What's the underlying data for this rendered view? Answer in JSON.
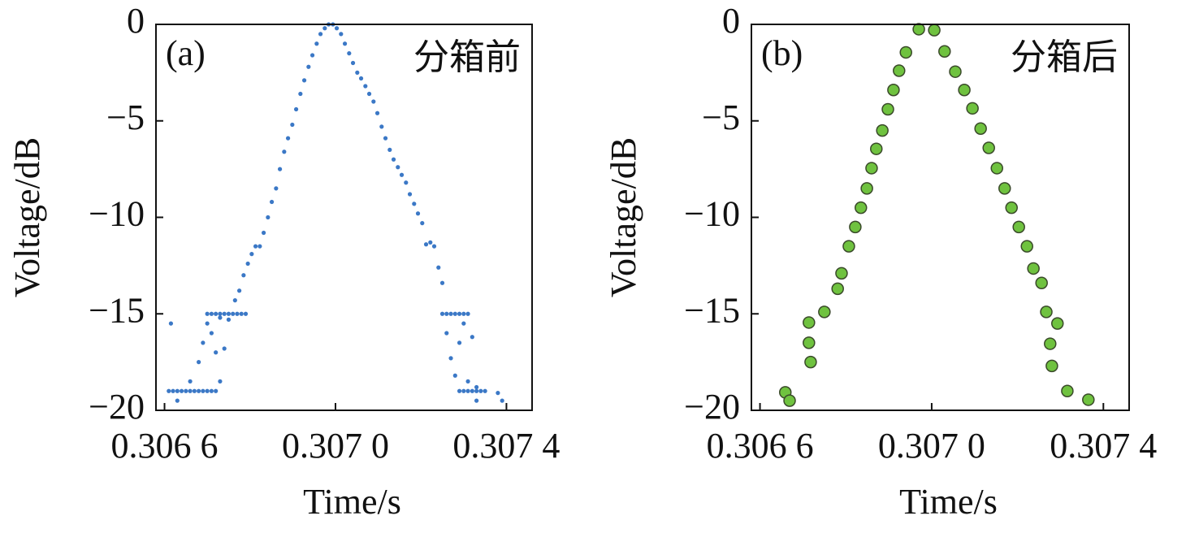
{
  "chart_data": [
    {
      "type": "scatter",
      "panel_label": "(a)",
      "annotation": "分箱前",
      "x_label": "Time/s",
      "y_label": "Voltage/dB",
      "color": "#3b78c6",
      "marker_size": 2.6,
      "xlim": [
        0.30658,
        0.30746
      ],
      "ylim": [
        -20,
        0
      ],
      "xticks": [
        {
          "value": 0.3066,
          "label": "0.306 6"
        },
        {
          "value": 0.307,
          "label": "0.307 0"
        },
        {
          "value": 0.3074,
          "label": "0.307 4"
        }
      ],
      "yticks": [
        {
          "value": -20,
          "label": "−20"
        },
        {
          "value": -15,
          "label": "−15"
        },
        {
          "value": -10,
          "label": "−10"
        },
        {
          "value": -5,
          "label": "−5"
        },
        0
      ],
      "x": [
        0.30661,
        0.30662,
        0.30663,
        0.30664,
        0.30665,
        0.30666,
        0.30667,
        0.30668,
        0.30669,
        0.3067,
        0.30671,
        0.30672,
        0.306615,
        0.30663,
        0.30666,
        0.30668,
        0.30669,
        0.3067,
        0.30671,
        0.30672,
        0.30673,
        0.30673,
        0.30674,
        0.30675,
        0.3067,
        0.30671,
        0.30672,
        0.30673,
        0.30674,
        0.30675,
        0.30676,
        0.30677,
        0.30678,
        0.30679,
        0.306765,
        0.306775,
        0.306785,
        0.306795,
        0.306804,
        0.306813,
        0.306823,
        0.306832,
        0.306842,
        0.306851,
        0.306861,
        0.30687,
        0.30688,
        0.306889,
        0.306899,
        0.306908,
        0.306918,
        0.306927,
        0.306937,
        0.306946,
        0.306956,
        0.306965,
        0.306975,
        0.306984,
        0.306994,
        0.307003,
        0.307013,
        0.307022,
        0.307032,
        0.307041,
        0.307051,
        0.30706,
        0.30707,
        0.307079,
        0.307089,
        0.307098,
        0.307108,
        0.307117,
        0.307127,
        0.307136,
        0.307146,
        0.307155,
        0.307165,
        0.307174,
        0.307184,
        0.307193,
        0.307203,
        0.307212,
        0.307222,
        0.307231,
        0.307241,
        0.30725,
        0.30725,
        0.30726,
        0.30727,
        0.30728,
        0.30729,
        0.3073,
        0.30731,
        0.30726,
        0.30727,
        0.30728,
        0.30729,
        0.3073,
        0.30731,
        0.30732,
        0.30733,
        0.30729,
        0.3073,
        0.30731,
        0.30732,
        0.30733,
        0.30734,
        0.30735,
        0.30739,
        0.30738,
        0.30733
      ],
      "values": [
        -19,
        -19,
        -19,
        -19,
        -19,
        -19,
        -19,
        -19,
        -19,
        -19,
        -19,
        -19,
        -15.5,
        -19.5,
        -18.5,
        -17.5,
        -16.5,
        -15.5,
        -16,
        -17,
        -18.5,
        -15.2,
        -16.8,
        -15.3,
        -15,
        -15,
        -15,
        -15,
        -15,
        -15,
        -15,
        -15,
        -15,
        -15,
        -14.3,
        -13.8,
        -13,
        -12.4,
        -11.9,
        -11.5,
        -11.5,
        -10.8,
        -10,
        -9.2,
        -8.5,
        -7.5,
        -6.6,
        -5.9,
        -5.2,
        -4.4,
        -3.6,
        -2.9,
        -2.2,
        -1.6,
        -1,
        -0.5,
        -0.2,
        0,
        0,
        -0.2,
        -0.5,
        -1,
        -1.5,
        -2,
        -2.5,
        -2.8,
        -3.2,
        -3.6,
        -4,
        -4.6,
        -5.3,
        -5.9,
        -6.5,
        -7,
        -7.4,
        -7.8,
        -8.2,
        -8.8,
        -9.3,
        -9.8,
        -10.3,
        -11.4,
        -11.3,
        -11.5,
        -12.6,
        -13.4,
        -15,
        -15,
        -15,
        -15,
        -15,
        -15,
        -15,
        -16,
        -17.3,
        -18.2,
        -16.5,
        -15.5,
        -18.5,
        -16.2,
        -18.8,
        -19,
        -19,
        -19,
        -19,
        -19,
        -19,
        -19,
        -19.5,
        -19.1,
        -19.5
      ]
    },
    {
      "type": "scatter",
      "panel_label": "(b)",
      "annotation": "分箱后",
      "x_label": "Time/s",
      "y_label": "Voltage/dB",
      "color": "#6fc23f",
      "marker_size": 7,
      "xlim": [
        0.30658,
        0.30746
      ],
      "ylim": [
        -20,
        0
      ],
      "xticks": [
        {
          "value": 0.3066,
          "label": "0.306 6"
        },
        {
          "value": 0.307,
          "label": "0.307 0"
        },
        {
          "value": 0.3074,
          "label": "0.307 4"
        }
      ],
      "yticks": [
        {
          "value": -20,
          "label": "−20"
        },
        {
          "value": -15,
          "label": "−15"
        },
        {
          "value": -10,
          "label": "−10"
        },
        {
          "value": -5,
          "label": "−5"
        },
        0
      ],
      "x": [
        0.306659,
        0.306669,
        0.306714,
        0.306714,
        0.306718,
        0.30675,
        0.306781,
        0.30679,
        0.306807,
        0.306822,
        0.306835,
        0.306849,
        0.30686,
        0.306871,
        0.306885,
        0.306898,
        0.306911,
        0.306924,
        0.30694,
        0.30697,
        0.307006,
        0.30703,
        0.307055,
        0.307076,
        0.307095,
        0.307114,
        0.307133,
        0.307152,
        0.30717,
        0.307186,
        0.307203,
        0.307222,
        0.307237,
        0.307256,
        0.307267,
        0.307293,
        0.307276,
        0.30728,
        0.307316,
        0.307365
      ],
      "values": [
        -19.07,
        -19.5,
        -15.45,
        -16.5,
        -17.5,
        -14.9,
        -13.7,
        -12.9,
        -11.5,
        -10.5,
        -9.5,
        -8.5,
        -7.45,
        -6.45,
        -5.5,
        -4.4,
        -3.4,
        -2.4,
        -1.45,
        -0.25,
        -0.3,
        -1.4,
        -2.45,
        -3.4,
        -4.35,
        -5.4,
        -6.4,
        -7.45,
        -8.5,
        -9.5,
        -10.5,
        -11.5,
        -12.65,
        -13.4,
        -14.9,
        -15.5,
        -16.55,
        -17.7,
        -19,
        -19.45
      ]
    }
  ]
}
